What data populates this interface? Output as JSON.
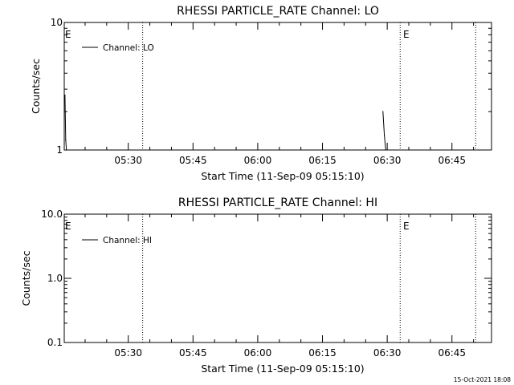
{
  "chart_data": [
    {
      "type": "line",
      "title": "RHESSI PARTICLE_RATE Channel: LO",
      "xlabel": "Start Time (11-Sep-09 05:15:10)",
      "ylabel": "Counts/sec",
      "y_scale": "log",
      "ylim": [
        1,
        10
      ],
      "y_tick_labels": [
        "10",
        "1"
      ],
      "x_tick_labels": [
        "05:30",
        "05:45",
        "06:00",
        "06:15",
        "06:30",
        "06:45"
      ],
      "grid": false,
      "legend_position": "top-left",
      "series": [
        {
          "name": "Channel: LO",
          "points": [
            {
              "x": "05:15:20",
              "y": 2.7
            },
            {
              "x": "05:15:30",
              "y": 1.2
            },
            {
              "x": "05:15:40",
              "y": 1.0
            },
            {
              "x": "06:29:00",
              "y": 2.0
            },
            {
              "x": "06:29:20",
              "y": 1.3
            },
            {
              "x": "06:29:40",
              "y": 1.0
            }
          ]
        }
      ],
      "markers": [
        {
          "label": "E",
          "text_time": "05:15:10",
          "line_time": null
        },
        {
          "label": "",
          "text_time": null,
          "line_time": "05:33:20"
        },
        {
          "label": "E",
          "text_time": "06:33:30",
          "line_time": "06:33:00"
        },
        {
          "label": "",
          "text_time": null,
          "line_time": "06:50:30"
        }
      ]
    },
    {
      "type": "line",
      "title": "RHESSI PARTICLE_RATE Channel: HI",
      "xlabel": "Start Time (11-Sep-09 05:15:10)",
      "ylabel": "Counts/sec",
      "y_scale": "log",
      "ylim": [
        0.1,
        10
      ],
      "y_tick_labels": [
        "10.0",
        "1.0",
        "0.1"
      ],
      "x_tick_labels": [
        "05:30",
        "05:45",
        "06:00",
        "06:15",
        "06:30",
        "06:45"
      ],
      "grid": false,
      "legend_position": "top-left",
      "series": [
        {
          "name": "Channel: HI",
          "points": []
        }
      ],
      "markers": [
        {
          "label": "E",
          "text_time": "05:15:10",
          "line_time": null
        },
        {
          "label": "",
          "text_time": null,
          "line_time": "05:33:20"
        },
        {
          "label": "E",
          "text_time": "06:33:30",
          "line_time": "06:33:00"
        },
        {
          "label": "",
          "text_time": null,
          "line_time": "06:50:30"
        }
      ]
    }
  ],
  "timestamp": "15-Oct-2021 18:08"
}
